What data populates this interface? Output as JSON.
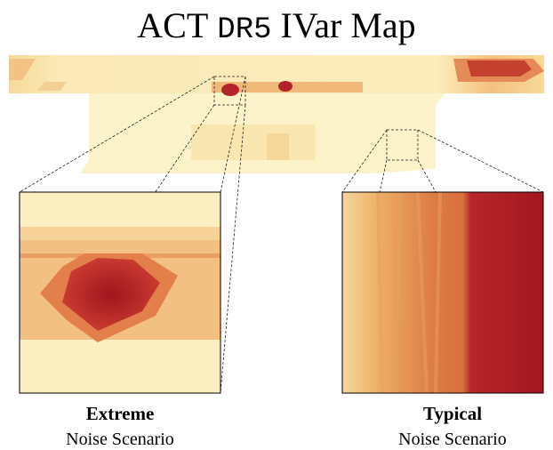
{
  "title": {
    "prefix": "ACT",
    "code": "DR5",
    "suffix": "IVar Map"
  },
  "panels": [
    {
      "label": "Extreme",
      "sublabel": "Noise Scenario"
    },
    {
      "label": "Typical",
      "sublabel": "Noise Scenario"
    }
  ]
}
